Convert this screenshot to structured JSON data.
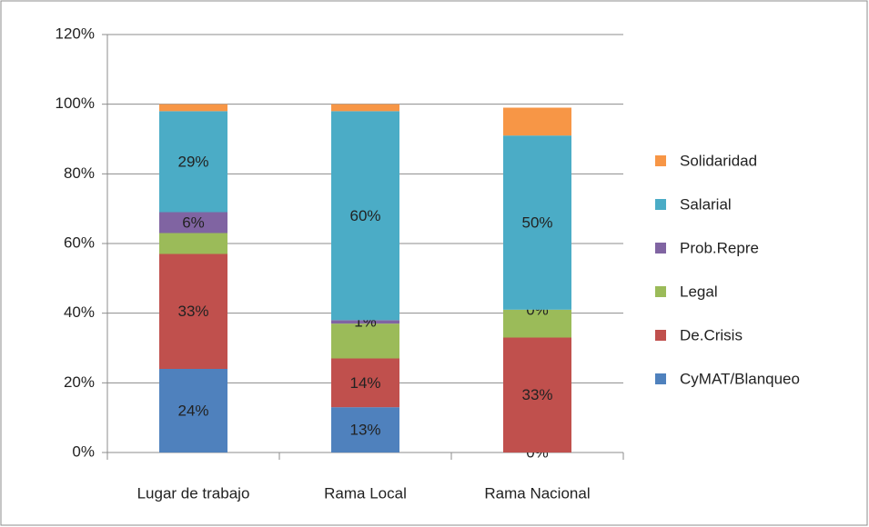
{
  "chart_data": {
    "type": "stacked_bar",
    "categories": [
      "Lugar de trabajo",
      "Rama Local",
      "Rama Nacional"
    ],
    "series": [
      {
        "name": "CyMAT/Blanqueo",
        "color": "#4f81bd",
        "values": [
          24,
          13,
          0
        ],
        "value_labels": [
          "24%",
          "13%",
          "0%"
        ]
      },
      {
        "name": "De.Crisis",
        "color": "#c0504d",
        "values": [
          33,
          14,
          33
        ],
        "value_labels": [
          "33%",
          "14%",
          "33%"
        ]
      },
      {
        "name": "Legal",
        "color": "#9bbb59",
        "values": [
          6,
          10,
          8
        ],
        "value_labels": [
          null,
          null,
          null
        ]
      },
      {
        "name": "Prob.Repre",
        "color": "#8064a2",
        "values": [
          6,
          1,
          0
        ],
        "value_labels": [
          "6%",
          "1%",
          "0%"
        ]
      },
      {
        "name": "Salarial",
        "color": "#4bacc6",
        "values": [
          29,
          60,
          50
        ],
        "value_labels": [
          "29%",
          "60%",
          "50%"
        ]
      },
      {
        "name": "Solidaridad",
        "color": "#f79646",
        "values": [
          2,
          2,
          8
        ],
        "value_labels": [
          null,
          null,
          null
        ]
      }
    ],
    "ylim": [
      0,
      120
    ],
    "yticks": [
      {
        "value": 0,
        "label": "0%"
      },
      {
        "value": 20,
        "label": "20%"
      },
      {
        "value": 40,
        "label": "40%"
      },
      {
        "value": 60,
        "label": "60%"
      },
      {
        "value": 80,
        "label": "80%"
      },
      {
        "value": 100,
        "label": "100%"
      },
      {
        "value": 120,
        "label": "120%"
      }
    ],
    "grid": true,
    "legend": "right"
  }
}
